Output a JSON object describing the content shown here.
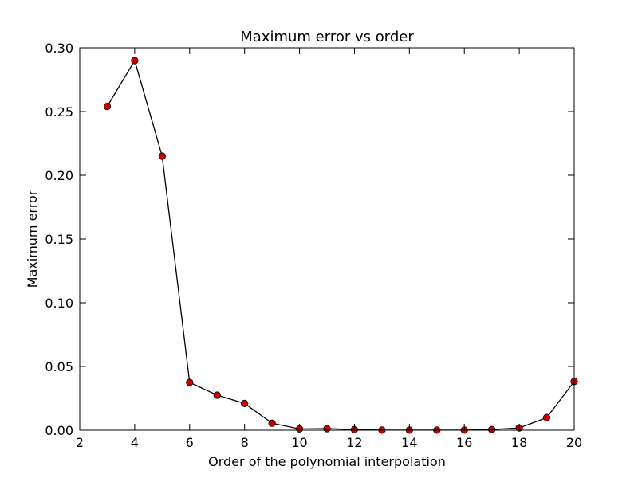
{
  "chart_data": {
    "type": "line",
    "title": "Maximum error vs order",
    "xlabel": "Order of the polynomial interpolation",
    "ylabel": "Maximum error",
    "xlim": [
      2,
      20
    ],
    "ylim": [
      0.0,
      0.3
    ],
    "xticks": [
      2,
      4,
      6,
      8,
      10,
      12,
      14,
      16,
      18,
      20
    ],
    "xtick_labels": [
      "2",
      "4",
      "6",
      "8",
      "10",
      "12",
      "14",
      "16",
      "18",
      "20"
    ],
    "yticks": [
      0.0,
      0.05,
      0.1,
      0.15,
      0.2,
      0.25,
      0.3
    ],
    "ytick_labels": [
      "0.00",
      "0.05",
      "0.10",
      "0.15",
      "0.20",
      "0.25",
      "0.30"
    ],
    "grid": false,
    "series": [
      {
        "x": [
          3,
          4,
          5,
          6,
          7,
          8,
          9,
          10,
          11,
          12,
          13,
          14,
          15,
          16,
          17,
          18,
          19,
          20
        ],
        "values": [
          0.254,
          0.29,
          0.215,
          0.0375,
          0.0275,
          0.021,
          0.0055,
          0.001,
          0.0012,
          0.0005,
          0.0001,
          0.0001,
          0.0001,
          0.0001,
          0.0005,
          0.0018,
          0.0099,
          0.0382
        ],
        "line_color": "#000000",
        "marker_color": "#cc0000"
      }
    ]
  }
}
